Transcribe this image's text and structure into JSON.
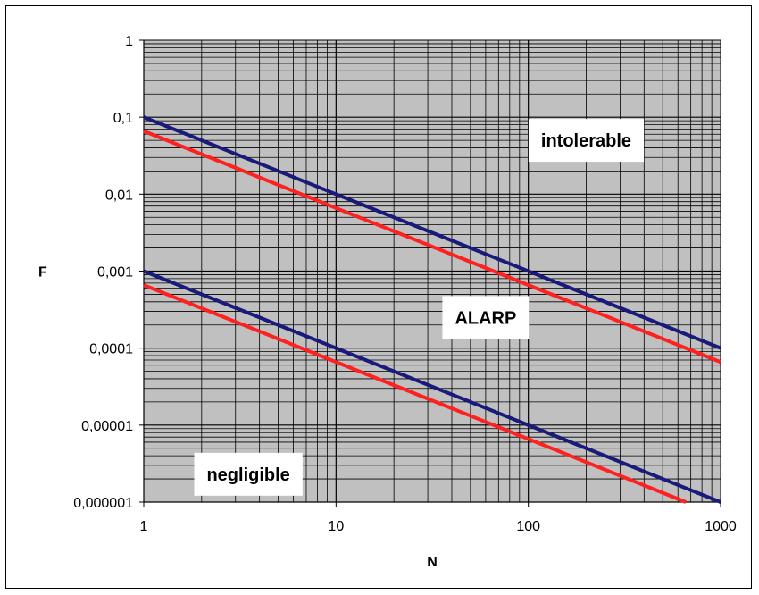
{
  "chart_data": {
    "type": "line",
    "xlabel": "N",
    "ylabel": "F",
    "x_scale": "log",
    "y_scale": "log",
    "xlim": [
      1,
      1000
    ],
    "ylim": [
      1e-06,
      1
    ],
    "grid": true,
    "plot_background": "#c0c0c0",
    "x_ticks": [
      "1",
      "10",
      "100",
      "1000"
    ],
    "y_ticks": [
      "1",
      "0,1",
      "0,01",
      "0,001",
      "0,0001",
      "0,00001",
      "0,000001"
    ],
    "series": [
      {
        "color": "#1a1a7a",
        "points": [
          [
            1,
            0.1
          ],
          [
            1000,
            0.0001
          ]
        ]
      },
      {
        "color": "#ff2020",
        "points": [
          [
            1,
            0.066
          ],
          [
            1000,
            6.6e-05
          ]
        ]
      },
      {
        "color": "#1a1a7a",
        "points": [
          [
            1,
            0.001
          ],
          [
            1000,
            1e-06
          ]
        ]
      },
      {
        "color": "#ff2020",
        "points": [
          [
            1,
            0.00066
          ],
          [
            660,
            1e-06
          ]
        ]
      }
    ],
    "annotations": [
      {
        "text": "intolerable",
        "x": 200,
        "y": 0.05
      },
      {
        "text": "ALARP",
        "x": 60,
        "y": 0.00025
      },
      {
        "text": "negligible",
        "x": 3.5,
        "y": 2.3e-06
      }
    ]
  }
}
